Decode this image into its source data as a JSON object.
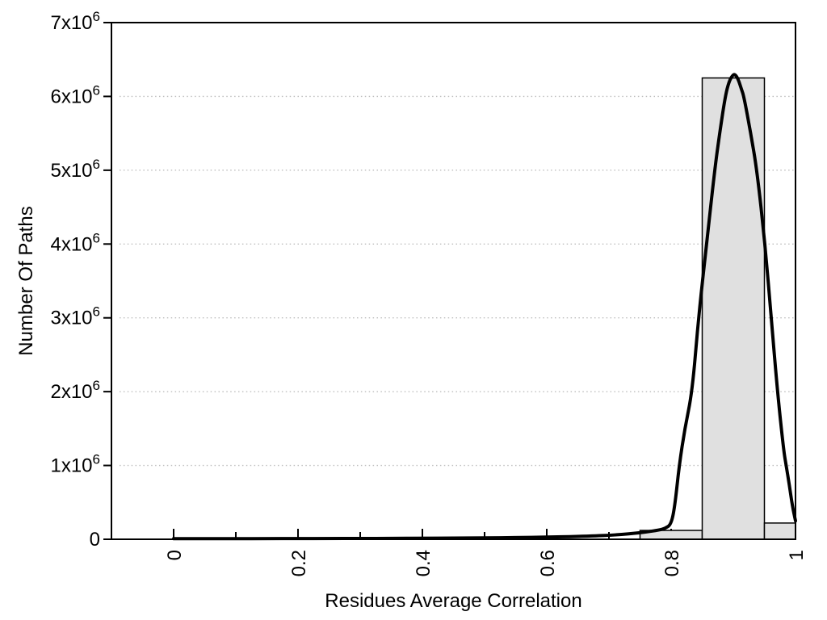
{
  "figure": {
    "background": "#ffffff",
    "text_color": "#000000"
  },
  "chart_data": {
    "type": "bar",
    "subtype": "histogram-with-fit-curve",
    "title": "",
    "xlabel": "Residues Average Correlation",
    "ylabel": "Number Of Paths",
    "xlim": [
      -0.1,
      1.0
    ],
    "ylim": [
      0,
      7000000
    ],
    "grid": {
      "horizontal": "dotted",
      "vertical": "none",
      "color": "#bdbdbd"
    },
    "legend": null,
    "x_major_ticks": [
      0,
      0.2,
      0.4,
      0.6,
      0.8,
      1.0
    ],
    "x_major_tick_labels": [
      "0",
      "0.2",
      "0.4",
      "0.6",
      "0.8",
      "1"
    ],
    "x_minor_ticks": [
      0.1,
      0.3,
      0.5,
      0.7,
      0.9
    ],
    "y_major_ticks": [
      0,
      1000000,
      2000000,
      3000000,
      4000000,
      5000000,
      6000000,
      7000000
    ],
    "y_major_tick_labels": [
      "0",
      "1x10^6",
      "2x10^6",
      "3x10^6",
      "4x10^6",
      "5x10^6",
      "6x10^6",
      "7x10^6"
    ],
    "bars": {
      "fill": "#e0e0e0",
      "stroke": "#000000",
      "bins": [
        {
          "x0": 0.75,
          "x1": 0.85,
          "count": 120000
        },
        {
          "x0": 0.85,
          "x1": 0.95,
          "count": 6250000
        },
        {
          "x0": 0.95,
          "x1": 1.0,
          "count": 220000
        }
      ]
    },
    "curve": {
      "name": "density-fit",
      "color": "#000000",
      "peak": {
        "x": 0.9,
        "y": 6300000
      },
      "points": [
        [
          0.0,
          8000
        ],
        [
          0.05,
          8000
        ],
        [
          0.1,
          8000
        ],
        [
          0.15,
          9000
        ],
        [
          0.2,
          9000
        ],
        [
          0.25,
          10000
        ],
        [
          0.3,
          11000
        ],
        [
          0.35,
          12000
        ],
        [
          0.4,
          14000
        ],
        [
          0.45,
          16000
        ],
        [
          0.5,
          19000
        ],
        [
          0.55,
          23000
        ],
        [
          0.6,
          29000
        ],
        [
          0.65,
          38000
        ],
        [
          0.68,
          46000
        ],
        [
          0.7,
          54000
        ],
        [
          0.72,
          65000
        ],
        [
          0.74,
          80000
        ],
        [
          0.76,
          98000
        ],
        [
          0.78,
          125000
        ],
        [
          0.79,
          145000
        ],
        [
          0.8,
          200000
        ],
        [
          0.806,
          450000
        ],
        [
          0.813,
          1000000
        ],
        [
          0.822,
          1500000
        ],
        [
          0.834,
          2000000
        ],
        [
          0.844,
          3000000
        ],
        [
          0.857,
          4000000
        ],
        [
          0.87,
          5000000
        ],
        [
          0.878,
          5500000
        ],
        [
          0.887,
          6000000
        ],
        [
          0.893,
          6200000
        ],
        [
          0.899,
          6290000
        ],
        [
          0.903,
          6300000
        ],
        [
          0.908,
          6230000
        ],
        [
          0.913,
          6100000
        ],
        [
          0.917,
          6000000
        ],
        [
          0.928,
          5500000
        ],
        [
          0.938,
          5000000
        ],
        [
          0.951,
          4000000
        ],
        [
          0.961,
          3000000
        ],
        [
          0.971,
          2000000
        ],
        [
          0.981,
          1200000
        ],
        [
          0.985,
          1000000
        ],
        [
          0.99,
          740000
        ],
        [
          0.995,
          450000
        ],
        [
          1.0,
          250000
        ]
      ]
    }
  }
}
